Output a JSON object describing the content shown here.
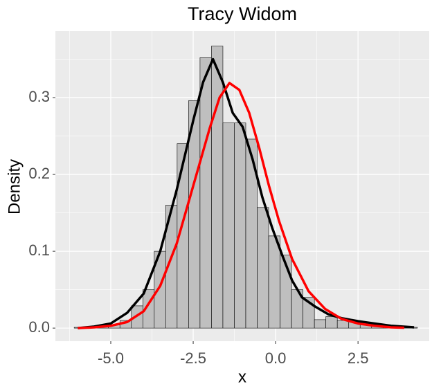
{
  "chart_data": {
    "type": "histogram",
    "title": "Tracy Widom",
    "xlabel": "x",
    "ylabel": "Density",
    "bins": [
      -6.11,
      -5.763,
      -5.416,
      -5.069,
      -4.722,
      -4.375,
      -4.028,
      -3.681,
      -3.334,
      -2.987,
      -2.64,
      -2.293,
      -1.946,
      -1.599,
      -1.252,
      -0.905,
      -0.558,
      -0.211,
      0.136,
      0.483,
      0.83,
      1.177,
      1.524,
      1.871,
      2.218,
      2.565,
      2.912,
      3.259,
      3.606,
      3.953,
      4.3
    ],
    "values": [
      0.001,
      0.001,
      0.002,
      0.004,
      0.01,
      0.029,
      0.05,
      0.1,
      0.16,
      0.24,
      0.296,
      0.352,
      0.367,
      0.267,
      0.267,
      0.246,
      0.157,
      0.12,
      0.095,
      0.05,
      0.04,
      0.011,
      0.015,
      0.01,
      0.008,
      0.007,
      0.004,
      0.003,
      0.002,
      0.001
    ],
    "color": "#bfbfbf",
    "series": [
      {
        "color": "#000000",
        "x": [
          -6,
          -5.5,
          -5,
          -4.5,
          -4,
          -3.5,
          -3,
          -2.5,
          -2.2,
          -1.9,
          -1.6,
          -1.3,
          -1,
          -0.7,
          -0.4,
          -0.1,
          0.2,
          0.5,
          0.8,
          1.2,
          1.6,
          2,
          2.5,
          3,
          3.5,
          4.2
        ],
        "values": [
          0,
          0.002,
          0.006,
          0.02,
          0.045,
          0.1,
          0.18,
          0.27,
          0.32,
          0.35,
          0.32,
          0.28,
          0.262,
          0.22,
          0.17,
          0.13,
          0.095,
          0.062,
          0.04,
          0.028,
          0.018,
          0.013,
          0.009,
          0.006,
          0.003,
          0.001
        ]
      },
      {
        "color": "#ff0000",
        "x": [
          -6,
          -5.5,
          -5,
          -4.5,
          -4,
          -3.5,
          -3,
          -2.5,
          -2,
          -1.7,
          -1.4,
          -1.1,
          -0.8,
          -0.5,
          -0.2,
          0.1,
          0.5,
          1,
          1.5,
          2,
          2.5,
          3,
          3.5,
          3.9
        ],
        "values": [
          0,
          0.001,
          0.003,
          0.008,
          0.022,
          0.055,
          0.11,
          0.185,
          0.26,
          0.3,
          0.319,
          0.31,
          0.28,
          0.235,
          0.185,
          0.14,
          0.09,
          0.048,
          0.025,
          0.012,
          0.006,
          0.003,
          0.001,
          0.0005
        ]
      }
    ],
    "xlim": [
      -6.68,
      4.66
    ],
    "ylim": [
      -0.017,
      0.3865
    ],
    "xticks": [
      {
        "value": -5,
        "label": "-5.0"
      },
      {
        "value": -2.5,
        "label": "-2.5"
      },
      {
        "value": 0,
        "label": "0.0"
      },
      2.5
    ],
    "yticks": [
      {
        "value": 0,
        "label": "0.0"
      },
      0.1,
      0.2,
      0.3
    ],
    "xminor": [
      -6.25,
      -3.75,
      -1.25,
      1.25,
      3.75
    ],
    "yminor": [
      0.05,
      0.15,
      0.25,
      0.35
    ],
    "grid": true
  }
}
